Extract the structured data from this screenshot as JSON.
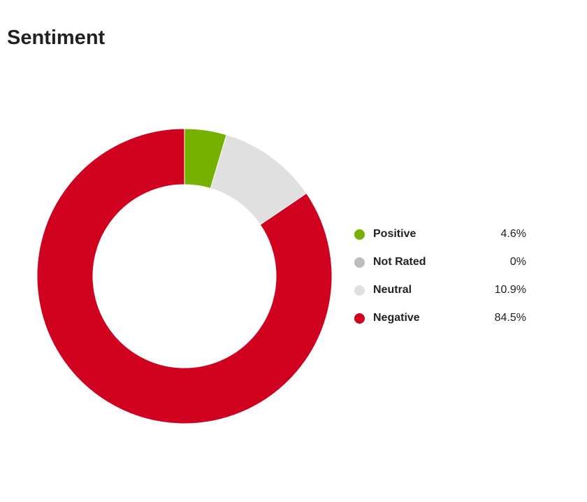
{
  "chart_data": {
    "type": "pie",
    "title": "Sentiment",
    "donut": true,
    "legend_position": "right",
    "series": [
      {
        "name": "Positive",
        "value": 4.6,
        "label": "4.6%",
        "color": "#76b100"
      },
      {
        "name": "Not Rated",
        "value": 0,
        "label": "0%",
        "color": "#bdbdbd"
      },
      {
        "name": "Neutral",
        "value": 10.9,
        "label": "10.9%",
        "color": "#e0e0e0"
      },
      {
        "name": "Negative",
        "value": 84.5,
        "label": "84.5%",
        "color": "#d0011f"
      }
    ]
  }
}
